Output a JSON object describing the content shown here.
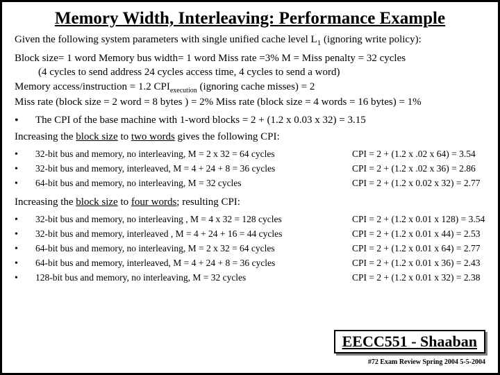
{
  "title": "Memory Width, Interleaving: Performance Example",
  "intro_a": "Given the following system parameters with single unified cache level L",
  "intro_sub": "1",
  "intro_b": " (ignoring write policy):",
  "params": {
    "l1": "Block size= 1 word   Memory bus width= 1  word    Miss rate =3%   M = Miss penalty = 32 cycles",
    "l2": "(4 cycles to send address     24 cycles  access time,    4 cycles to send a word)",
    "l3a": "Memory access/instruction = 1.2        CPI",
    "l3sub": "execution",
    "l3b": " (ignoring cache misses) = 2",
    "l4": "Miss rate (block size = 2 word = 8 bytes ) =  2%    Miss rate  (block size = 4 words = 16 bytes) = 1%"
  },
  "base_cpi": "The CPI of the base machine with 1-word blocks  =  2 + (1.2 x 0.03 x 32) = 3.15",
  "sec2_a": "Increasing the ",
  "sec2_u1": "block size",
  "sec2_b": " to ",
  "sec2_u2": "two words",
  "sec2_c": " gives the following CPI:",
  "list2": [
    {
      "desc": "32-bit bus and memory, no interleaving,   M = 2 x 32 = 64 cycles",
      "cpi": "CPI = 2 + (1.2 x  .02 x 64) = 3.54"
    },
    {
      "desc": "32-bit bus and memory, interleaved,    M = 4 + 24 + 8  = 36 cycles",
      "cpi": "CPI = 2 + (1.2 x .02 x 36)  = 2.86"
    },
    {
      "desc": "64-bit bus and memory, no interleaving,    M = 32 cycles",
      "cpi": " CPI = 2 + (1.2 x 0.02 x 32) = 2.77"
    }
  ],
  "sec4_a": "Increasing the ",
  "sec4_u1": "block size",
  "sec4_b": " to ",
  "sec4_u2": "four words",
  "sec4_c": "; resulting CPI:",
  "list4": [
    {
      "desc": "32-bit bus and memory, no interleaving ,   M = 4 x 32 = 128 cycles",
      "cpi": "CPI = 2 + (1.2 x 0.01 x 128) = 3.54"
    },
    {
      "desc": "32-bit bus and memory, interleaved ,   M = 4 + 24 + 16 = 44 cycles",
      "cpi": "CPI = 2 + (1.2 x 0.01 x 44)  = 2.53"
    },
    {
      "desc": "64-bit bus and memory, no interleaving,    M = 2 x 32 =  64 cycles",
      "cpi": "CPI = 2 + (1.2 x 0.01 x 64) = 2.77"
    },
    {
      "desc": "64-bit bus and memory, interleaved,    M = 4 + 24 + 8 =  36 cycles",
      "cpi": "CPI = 2 + (1.2 x 0.01 x 36) = 2.43"
    },
    {
      "desc": "128-bit bus and memory, no interleaving,    M =  32 cycles",
      "cpi": " CPI = 2 + (1.2 x 0.01 x 32) = 2.38"
    }
  ],
  "footer_course": "EECC551 - Shaaban",
  "footer_small": "#72  Exam Review  Spring 2004  5-5-2004"
}
